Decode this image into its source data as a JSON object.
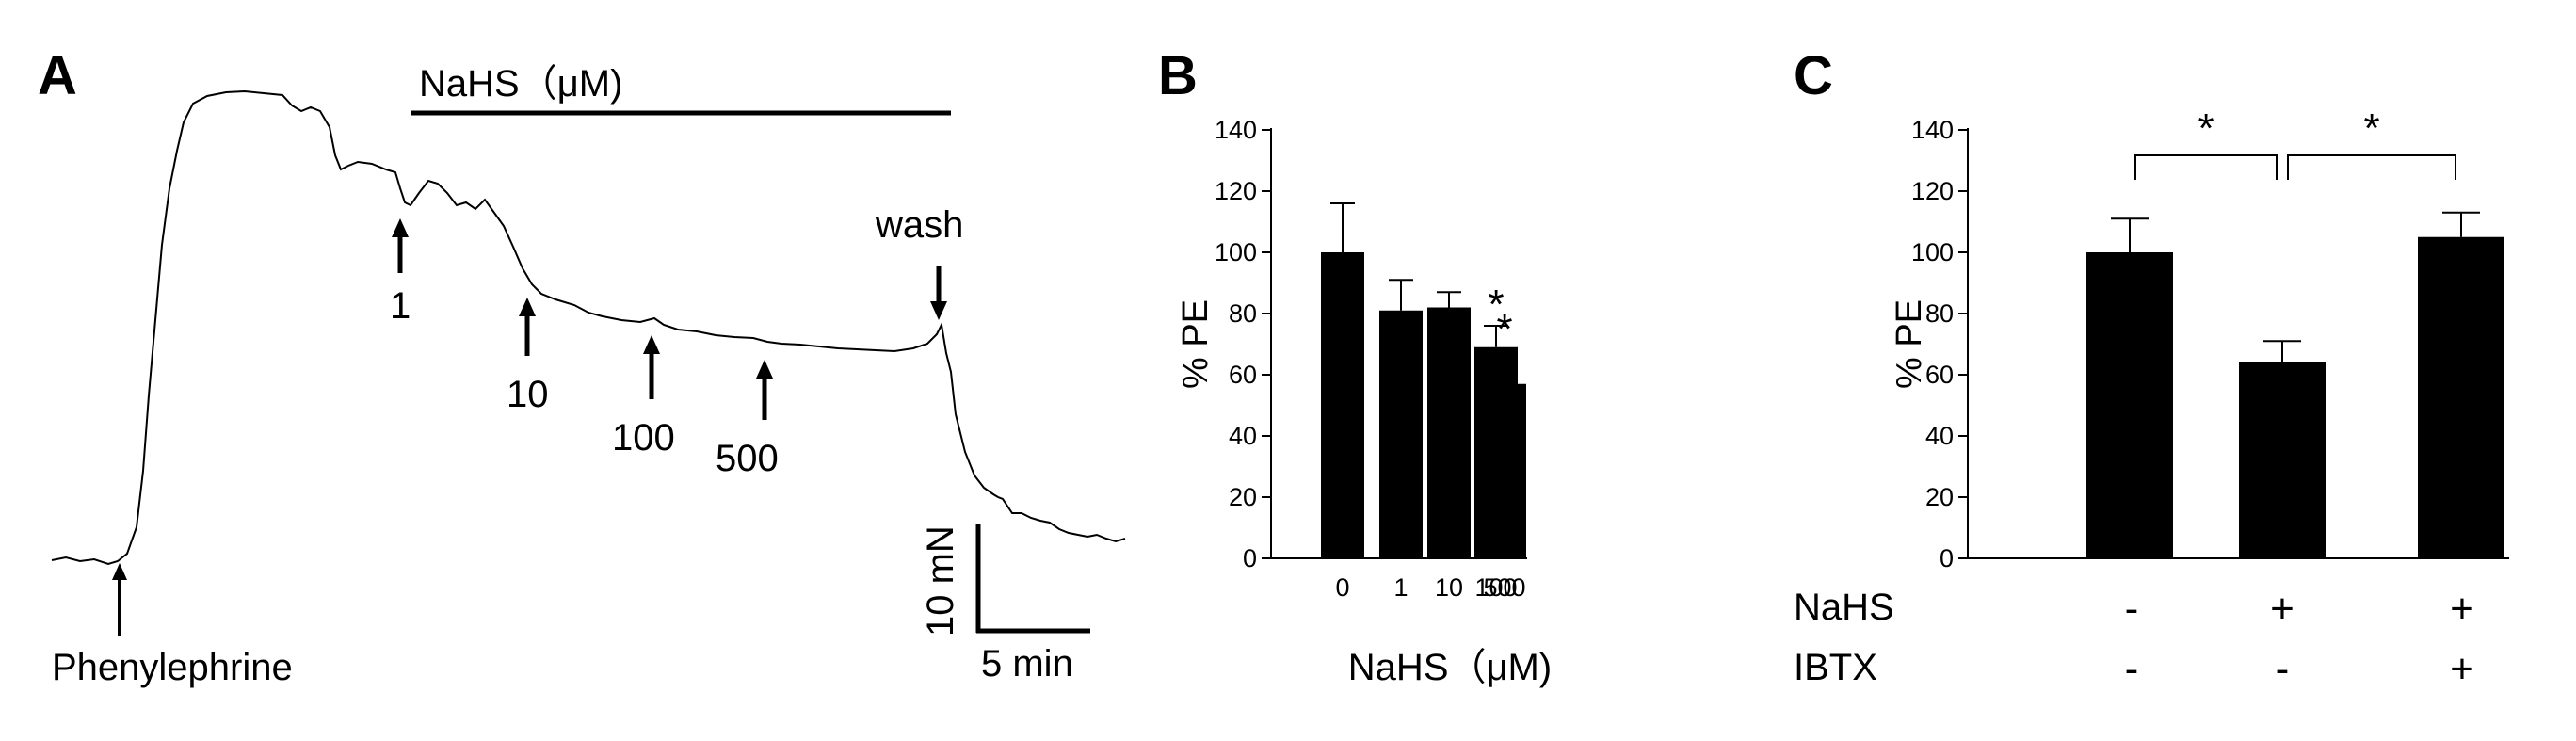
{
  "colors": {
    "ink": "#000000",
    "background": "#ffffff"
  },
  "panelA": {
    "letter": "A",
    "treatment_bar_label": "NaHS（μM)",
    "stimulus_label": "Phenylephrine",
    "dose_labels": [
      "1",
      "10",
      "100",
      "500"
    ],
    "wash_label": "wash",
    "scale_force_label": "10 mN",
    "scale_time_label": "5 min"
  },
  "panelB": {
    "letter": "B"
  },
  "panelC": {
    "letter": "C",
    "row_labels": [
      "NaHS",
      "IBTX"
    ],
    "nahs_signs": [
      "-",
      "+",
      "+"
    ],
    "ibtx_signs": [
      "-",
      "-",
      "+"
    ]
  },
  "chart_data": [
    {
      "type": "bar",
      "panel": "B",
      "xlabel": "NaHS（μM)",
      "ylabel": "% PE",
      "categories": [
        "0",
        "1",
        "10",
        "100",
        "500"
      ],
      "values": [
        100,
        81,
        82,
        69,
        57
      ],
      "errors": [
        16,
        10,
        5,
        7,
        11
      ],
      "significance": [
        "",
        "",
        "",
        "*",
        "*"
      ],
      "yticks": [
        0,
        20,
        40,
        60,
        80,
        100,
        120,
        140
      ],
      "ylim": [
        0,
        140
      ],
      "grid": false
    },
    {
      "type": "bar",
      "panel": "C",
      "ylabel": "% PE",
      "categories": [
        "",
        "",
        ""
      ],
      "values": [
        100,
        64,
        105
      ],
      "errors": [
        11,
        7,
        8
      ],
      "yticks": [
        0,
        20,
        40,
        60,
        80,
        100,
        120,
        140
      ],
      "ylim": [
        0,
        140
      ],
      "grid": false,
      "comparisons": [
        {
          "from": 0,
          "to": 1,
          "label": "*"
        },
        {
          "from": 1,
          "to": 2,
          "label": "*"
        }
      ]
    }
  ]
}
